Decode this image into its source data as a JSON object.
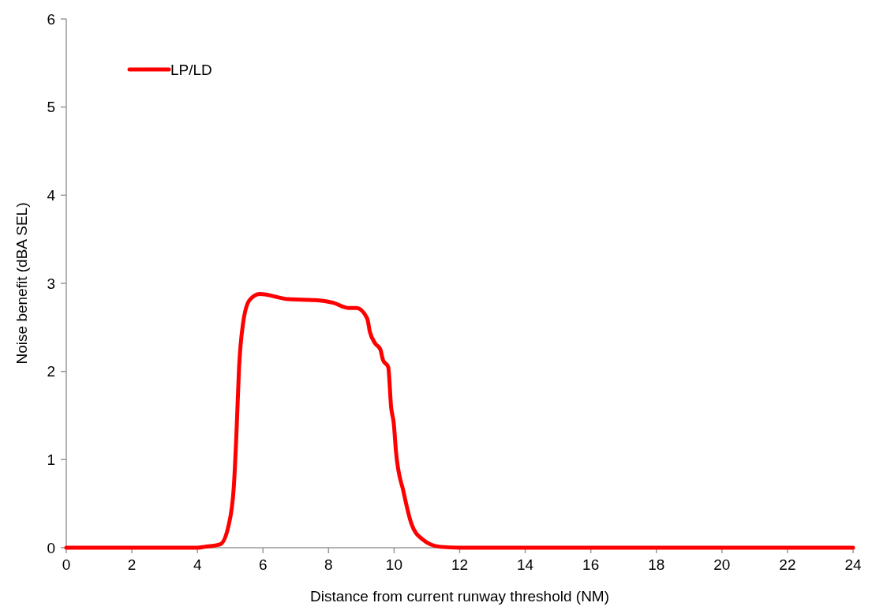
{
  "chart_data": {
    "type": "line",
    "xlabel": "Distance from current runway threshold (NM)",
    "ylabel": "Noise benefit (dBA SEL)",
    "xlim": [
      0,
      24
    ],
    "xticks": [
      0,
      2,
      4,
      6,
      8,
      10,
      12,
      14,
      16,
      18,
      20,
      22,
      24
    ],
    "ylim": [
      0,
      6
    ],
    "yticks": [
      0,
      1,
      2,
      3,
      4,
      5,
      6
    ],
    "grid": false,
    "legend": "top left",
    "marker": "none",
    "line_style": "solid",
    "series": [
      {
        "name": "LP/LD",
        "color": "#ff0000",
        "x": [
          0,
          4,
          4.22,
          4.7,
          4.95,
          5.11,
          5.19,
          5.27,
          5.39,
          5.59,
          5.9,
          6.78,
          7.58,
          8.14,
          8.62,
          8.86,
          9.18,
          9.26,
          9.42,
          9.58,
          9.66,
          9.82,
          9.91,
          9.99,
          10.06,
          10.29,
          10.53,
          10.85,
          11.41,
          12,
          24
        ],
        "values": [
          0,
          0,
          0.01,
          0.04,
          0.25,
          0.69,
          1.29,
          2.04,
          2.54,
          2.81,
          2.88,
          2.82,
          2.81,
          2.78,
          2.72,
          2.72,
          2.6,
          2.45,
          2.32,
          2.25,
          2.13,
          2.05,
          1.59,
          1.41,
          1.08,
          0.63,
          0.27,
          0.1,
          0.01,
          0,
          0
        ]
      }
    ]
  }
}
